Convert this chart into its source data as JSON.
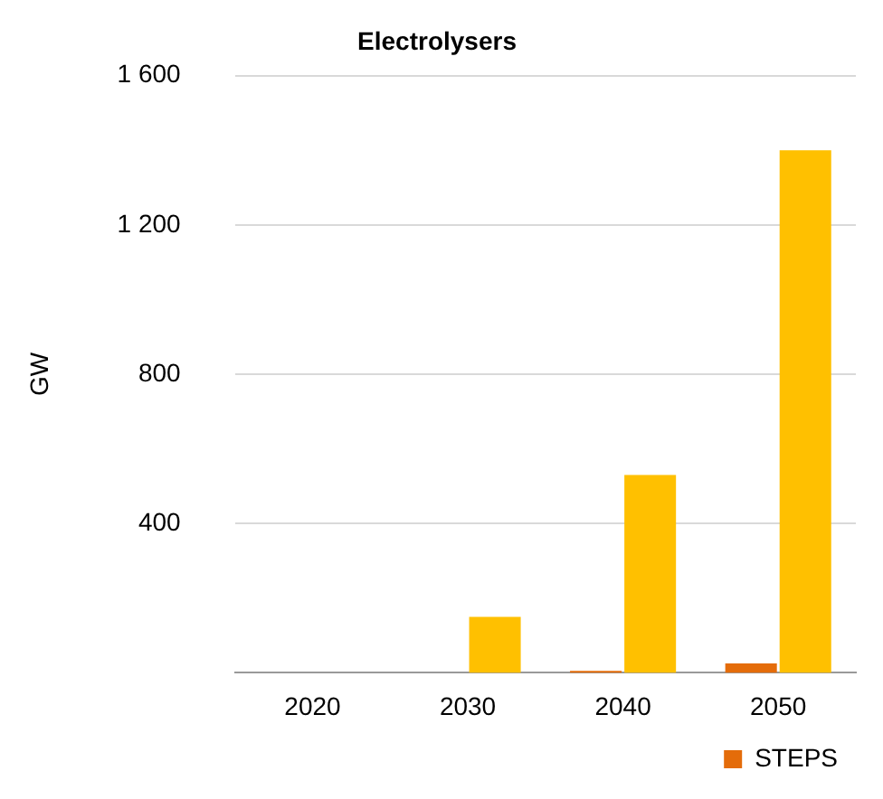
{
  "chart_data": {
    "type": "bar",
    "title": "Electrolysers",
    "ylabel": "GW",
    "categories": [
      "2020",
      "2030",
      "2040",
      "2050"
    ],
    "series": [
      {
        "name": "STEPS",
        "color": "#e46c0a",
        "values": [
          0,
          null,
          5,
          25
        ]
      },
      {
        "color": "#ffc000",
        "values": [
          0,
          150,
          530,
          1400
        ]
      }
    ],
    "ylim": [
      0,
      1600
    ],
    "yticks": [
      {
        "value": 400,
        "label": "400"
      },
      {
        "value": 800,
        "label": "800"
      },
      {
        "value": 1200,
        "label": "1 200"
      },
      {
        "value": 1600,
        "label": "1 600"
      }
    ],
    "grid": "y",
    "legend": "bottom right"
  }
}
